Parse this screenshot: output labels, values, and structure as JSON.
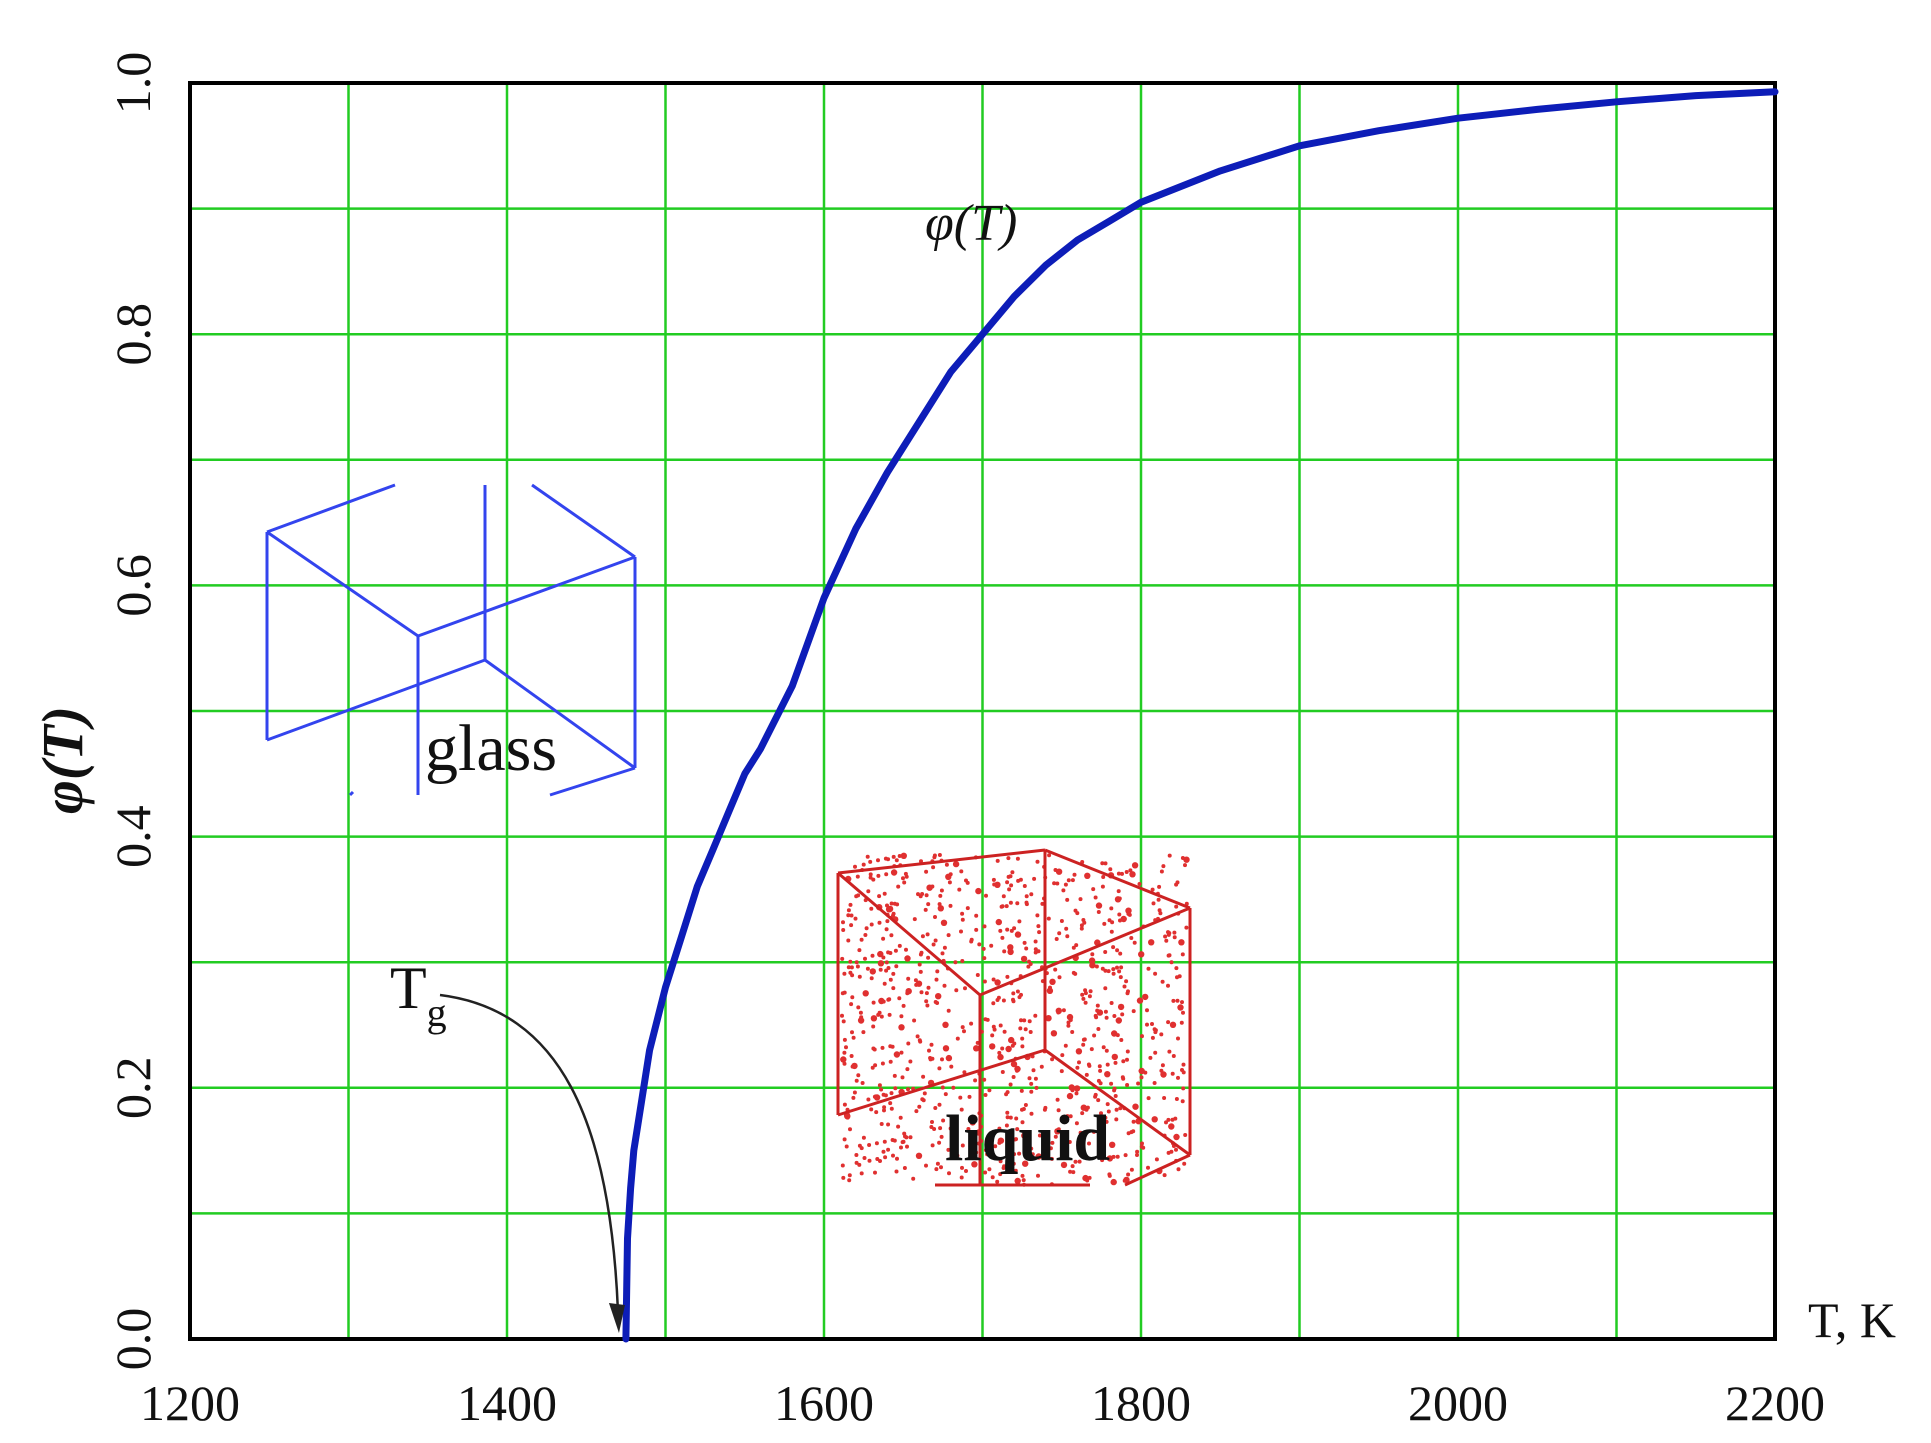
{
  "chart_data": {
    "type": "line",
    "xlabel": "T, K",
    "ylabel": "φ(T)",
    "xlim": [
      1200,
      2200
    ],
    "ylim": [
      0.0,
      1.0
    ],
    "xticks": [
      1200,
      1400,
      1600,
      1800,
      2000,
      2200
    ],
    "yticks": [
      0.0,
      0.2,
      0.4,
      0.6,
      0.8,
      1.0
    ],
    "grid": true,
    "grid_color": "#22cc22",
    "series": [
      {
        "name": "",
        "color": "#0d1db8",
        "x": [
          1475,
          1476,
          1478,
          1480,
          1485,
          1490,
          1500,
          1510,
          1520,
          1530,
          1540,
          1550,
          1560,
          1580,
          1600,
          1620,
          1640,
          1660,
          1680,
          1700,
          1720,
          1740,
          1760,
          1780,
          1800,
          1850,
          1900,
          1950,
          2000,
          2050,
          2100,
          2150,
          2200
        ],
        "y": [
          0.0,
          0.08,
          0.12,
          0.15,
          0.19,
          0.23,
          0.28,
          0.32,
          0.36,
          0.39,
          0.42,
          0.45,
          0.47,
          0.52,
          0.59,
          0.645,
          0.69,
          0.73,
          0.77,
          0.8,
          0.83,
          0.855,
          0.875,
          0.89,
          0.905,
          0.93,
          0.95,
          0.962,
          0.972,
          0.979,
          0.985,
          0.99,
          0.993
        ]
      }
    ],
    "annotations": {
      "curve_label": "φ(T)",
      "tg_main": "T",
      "tg_sub": "g",
      "tg_x": 1470,
      "glass_label": "glass",
      "liquid_label": "liquid"
    }
  }
}
